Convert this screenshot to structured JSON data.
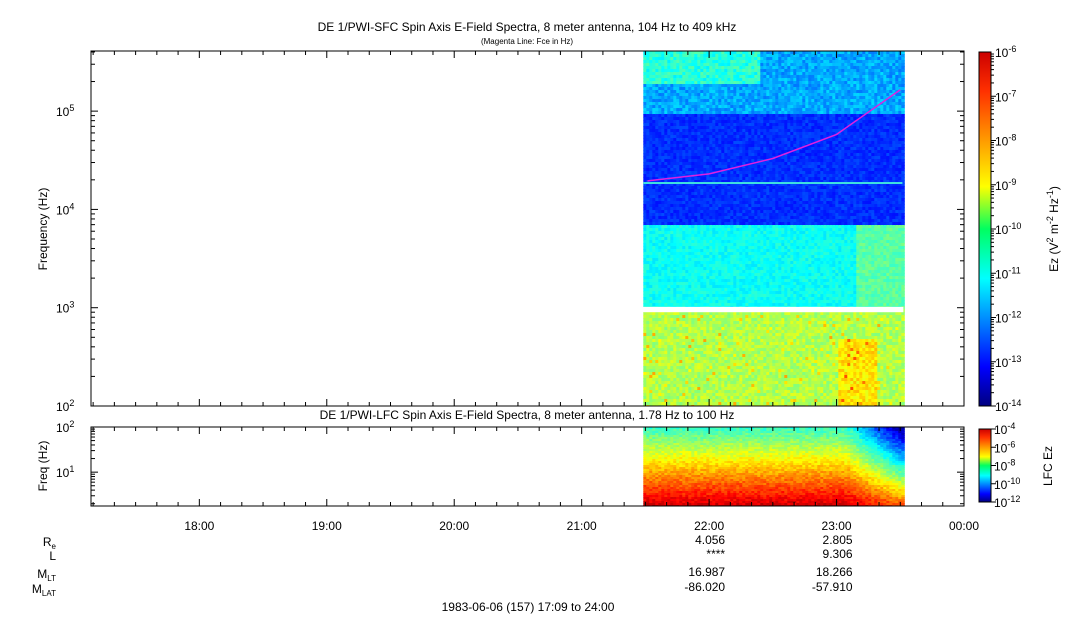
{
  "chart_data": [
    {
      "type": "heatmap",
      "title": "DE 1/PWI-SFC  Spin Axis E-Field Spectra, 8 meter antenna, 104 Hz to 409 kHz",
      "subtitle": "(Magenta Line: Fce in Hz)",
      "ylabel": "Frequency (Hz)",
      "yscale": "log",
      "ylim": [
        100,
        409000
      ],
      "y_ticks": [
        {
          "exp": "2",
          "value": 100
        },
        {
          "exp": "3",
          "value": 1000
        },
        {
          "exp": "4",
          "value": 10000
        },
        {
          "exp": "5",
          "value": 100000
        }
      ],
      "x_ticks": [
        "18:00",
        "19:00",
        "20:00",
        "21:00",
        "22:00",
        "23:00",
        "00:00"
      ],
      "data_start": "21:29",
      "data_end": "23:31",
      "colorbar": {
        "label_prefix": "Ez (V",
        "label_sup1": "2",
        "label_mid": " m",
        "label_sup2": "-2",
        "label_hz": " Hz",
        "label_sup3": "-1",
        "label_suffix": ")",
        "scale": "log",
        "range": [
          1e-14,
          1e-06
        ],
        "ticks": [
          {
            "exp": "-6",
            "value": 1e-06
          },
          {
            "exp": "-7",
            "value": 1e-07
          },
          {
            "exp": "-8",
            "value": 1e-08
          },
          {
            "exp": "-9",
            "value": 1e-09
          },
          {
            "exp": "-10",
            "value": 1e-10
          },
          {
            "exp": "-11",
            "value": 1e-11
          },
          {
            "exp": "-12",
            "value": 1e-12
          },
          {
            "exp": "-13",
            "value": 1e-13
          },
          {
            "exp": "-14",
            "value": 1e-14
          }
        ]
      },
      "fce_line": {
        "color": "#e020e0",
        "points": [
          {
            "t": "21:31",
            "f": 19500
          },
          {
            "t": "22:00",
            "f": 23000
          },
          {
            "t": "22:30",
            "f": 33000
          },
          {
            "t": "23:00",
            "f": 58000
          },
          {
            "t": "23:30",
            "f": 165000
          }
        ]
      },
      "gap_band_hz": [
        900,
        1020
      ]
    },
    {
      "type": "heatmap",
      "title": "DE 1/PWI-LFC  Spin Axis E-Field Spectra, 8 meter antenna, 1.78 Hz to 100 Hz",
      "ylabel": "Freq (Hz)",
      "yscale": "log",
      "ylim": [
        1.78,
        100
      ],
      "y_ticks": [
        {
          "exp": "1",
          "value": 10
        },
        {
          "exp": "2",
          "value": 100
        }
      ],
      "x_ticks": [
        "18:00",
        "19:00",
        "20:00",
        "21:00",
        "22:00",
        "23:00",
        "00:00"
      ],
      "data_start": "21:29",
      "data_end": "23:31",
      "colorbar": {
        "label": "LFC Ez",
        "scale": "log",
        "range": [
          1e-12,
          0.0001
        ],
        "ticks": [
          {
            "exp": "-4",
            "value": 0.0001
          },
          {
            "exp": "-6",
            "value": 1e-06
          },
          {
            "exp": "-8",
            "value": 1e-08
          },
          {
            "exp": "-10",
            "value": 1e-10
          },
          {
            "exp": "-12",
            "value": 1e-12
          }
        ]
      }
    }
  ],
  "ephemeris": {
    "rows": [
      {
        "label": "R",
        "sub": "e",
        "values": [
          {
            "t": "22:00",
            "v": "4.056"
          },
          {
            "t": "23:00",
            "v": "2.805"
          }
        ]
      },
      {
        "label": "L",
        "sub": "",
        "values": [
          {
            "t": "22:00",
            "v": "****"
          },
          {
            "t": "23:00",
            "v": "9.306"
          }
        ]
      },
      {
        "label": "M",
        "sub": "LT",
        "values": [
          {
            "t": "22:00",
            "v": "16.987"
          },
          {
            "t": "23:00",
            "v": "18.266"
          }
        ]
      },
      {
        "label": "M",
        "sub": "LAT",
        "values": [
          {
            "t": "22:00",
            "v": "-86.020"
          },
          {
            "t": "23:00",
            "v": "-57.910"
          }
        ]
      }
    ]
  },
  "footer": "1983-06-06 (157) 17:09 to 24:00"
}
